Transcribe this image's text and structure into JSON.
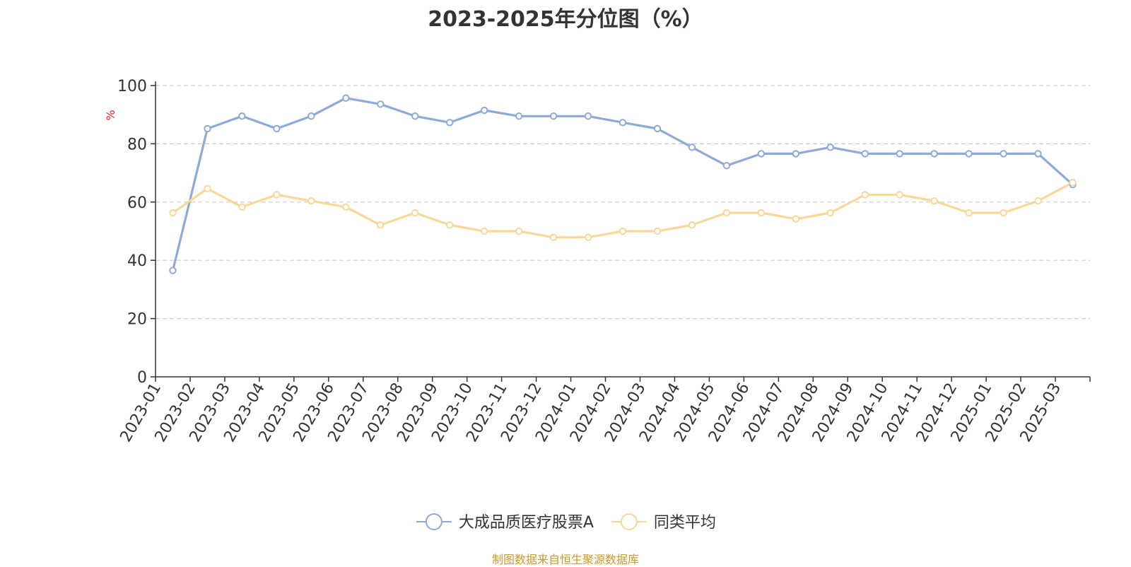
{
  "chart_data": {
    "type": "line",
    "title": "2023-2025年分位图（%）",
    "ylabel": "%",
    "xlabel": "",
    "ylim": [
      0,
      100
    ],
    "yticks": [
      0,
      20,
      40,
      60,
      80,
      100
    ],
    "grid": true,
    "legend_position": "bottom-center",
    "x": [
      "2023-01",
      "2023-02",
      "2023-03",
      "2023-04",
      "2023-05",
      "2023-06",
      "2023-07",
      "2023-08",
      "2023-09",
      "2023-10",
      "2023-11",
      "2023-12",
      "2024-01",
      "2024-02",
      "2024-03",
      "2024-04",
      "2024-05",
      "2024-06",
      "2024-07",
      "2024-08",
      "2024-09",
      "2024-10",
      "2024-11",
      "2024-12",
      "2025-01",
      "2025-02",
      "2025-03"
    ],
    "series": [
      {
        "name": "大成品质医疗股票A",
        "color": "#8eaad6",
        "values": [
          36.5,
          85.2,
          89.5,
          85.2,
          89.5,
          95.7,
          93.6,
          89.5,
          87.3,
          91.5,
          89.5,
          89.5,
          89.5,
          87.3,
          85.2,
          78.8,
          72.5,
          76.6,
          76.6,
          78.8,
          76.6,
          76.6,
          76.6,
          76.6,
          76.6,
          76.6,
          66.0
        ]
      },
      {
        "name": "同类平均",
        "color": "#f9d797",
        "values": [
          56.3,
          64.6,
          58.3,
          62.5,
          60.4,
          58.3,
          52.1,
          56.3,
          52.1,
          50.0,
          50.0,
          47.9,
          47.9,
          50.0,
          50.0,
          52.1,
          56.3,
          56.3,
          54.2,
          56.3,
          62.5,
          62.5,
          60.4,
          56.3,
          56.3,
          60.4,
          66.7
        ]
      }
    ]
  },
  "footer": {
    "source": "制图数据来自恒生聚源数据库"
  }
}
